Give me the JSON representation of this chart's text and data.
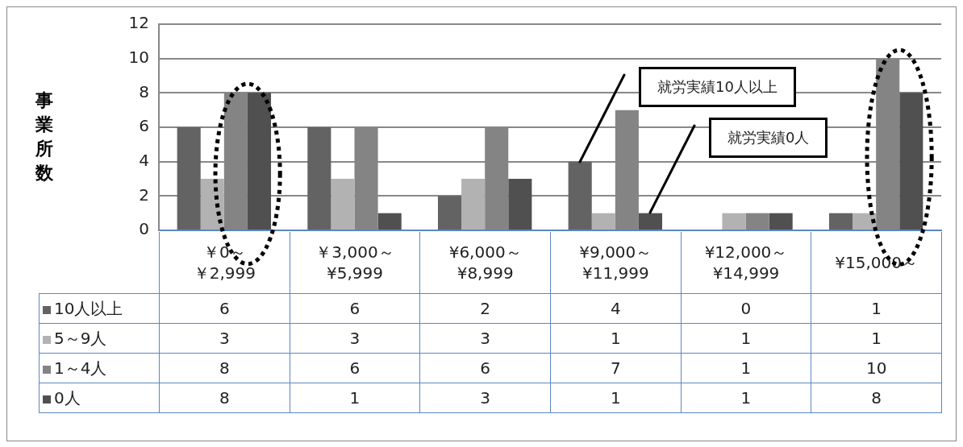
{
  "chart_data": {
    "type": "bar",
    "ylabel": "事業所数",
    "categories": [
      "￥0～￥2,999",
      "￥3,000～¥5,999",
      "¥6,000～¥8,999",
      "¥9,000～¥11,999",
      "¥12,000～¥14,999",
      "¥15,000～"
    ],
    "series": [
      {
        "name": "10人以上",
        "color": "#636363",
        "values": [
          6,
          6,
          2,
          4,
          0,
          1
        ]
      },
      {
        "name": "5～9人",
        "color": "#b2b2b2",
        "values": [
          3,
          3,
          3,
          1,
          1,
          1
        ]
      },
      {
        "name": "1～4人",
        "color": "#848484",
        "values": [
          8,
          6,
          6,
          7,
          1,
          10
        ]
      },
      {
        "name": "0人",
        "color": "#505050",
        "values": [
          8,
          1,
          3,
          1,
          1,
          8
        ]
      }
    ],
    "ylim": [
      0,
      12
    ],
    "yticks": [
      0,
      2,
      4,
      6,
      8,
      10,
      12
    ],
    "grid": "y",
    "legend": "bottom left",
    "data_labels": true,
    "annotations": [
      "就労実績10人以上",
      "就労実績0人"
    ]
  }
}
